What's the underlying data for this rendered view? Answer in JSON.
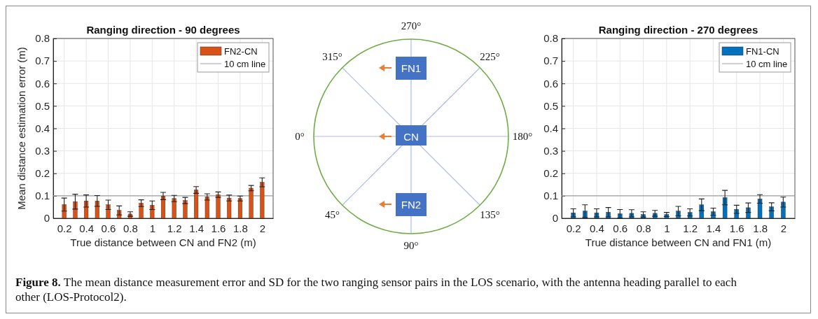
{
  "chart_data": [
    {
      "type": "bar",
      "title": "Ranging direction - 90 degrees",
      "xlabel": "True distance between CN and FN2 (m)",
      "ylabel": "Mean distance estimation error (m)",
      "x": [
        0.2,
        0.3,
        0.4,
        0.5,
        0.6,
        0.7,
        0.8,
        0.9,
        1.0,
        1.1,
        1.2,
        1.3,
        1.4,
        1.5,
        1.6,
        1.7,
        1.8,
        1.9,
        2.0
      ],
      "series": [
        {
          "name": "FN2-CN",
          "color": "#d95319",
          "values": [
            0.061,
            0.074,
            0.077,
            0.077,
            0.06,
            0.035,
            0.019,
            0.067,
            0.058,
            0.099,
            0.088,
            0.079,
            0.126,
            0.095,
            0.105,
            0.09,
            0.088,
            0.134,
            0.16
          ],
          "errors": [
            0.029,
            0.033,
            0.027,
            0.024,
            0.021,
            0.02,
            0.01,
            0.015,
            0.019,
            0.016,
            0.014,
            0.014,
            0.015,
            0.014,
            0.012,
            0.013,
            0.011,
            0.012,
            0.02
          ]
        }
      ],
      "xlim": [
        0.1,
        2.1
      ],
      "xticks": [
        0.2,
        0.4,
        0.6,
        0.8,
        1,
        1.2,
        1.4,
        1.6,
        1.8,
        2
      ],
      "ylim": [
        0,
        0.8
      ],
      "yticks": [
        0,
        0.1,
        0.2,
        0.3,
        0.4,
        0.5,
        0.6,
        0.7,
        0.8
      ],
      "ref_lines": [
        {
          "axis": "y",
          "value": 0.1,
          "label": "10 cm line",
          "color": "#a0a0a0"
        }
      ],
      "grid": true,
      "legend": "top right",
      "annotations": [
        "Figure 8.",
        "The mean distance measurement error and SD for the two ranging sensor pairs in the LOS scenario, with the antenna heading parallel to each other (LOS-Protocol2)."
      ]
    },
    {
      "type": "other",
      "annotations": [
        "270°",
        "225°",
        "180°",
        "135°",
        "90°",
        "45°",
        "0°",
        "315°",
        "FN1",
        "CN",
        "FN2"
      ]
    },
    {
      "type": "bar",
      "title": "Ranging direction - 270 degrees",
      "xlabel": "True distance between CN and FN1 (m)",
      "x": [
        0.2,
        0.3,
        0.4,
        0.5,
        0.6,
        0.7,
        0.8,
        0.9,
        1.0,
        1.1,
        1.2,
        1.3,
        1.4,
        1.5,
        1.6,
        1.7,
        1.8,
        1.9,
        2.0
      ],
      "series": [
        {
          "name": "FN1-CN",
          "color": "#0072bd",
          "values": [
            0.024,
            0.032,
            0.024,
            0.027,
            0.02,
            0.022,
            0.017,
            0.022,
            0.017,
            0.032,
            0.026,
            0.06,
            0.029,
            0.092,
            0.04,
            0.047,
            0.086,
            0.051,
            0.072
          ],
          "errors": [
            0.018,
            0.028,
            0.018,
            0.021,
            0.019,
            0.016,
            0.012,
            0.013,
            0.009,
            0.021,
            0.016,
            0.026,
            0.016,
            0.032,
            0.018,
            0.021,
            0.019,
            0.018,
            0.022
          ]
        }
      ],
      "xlim": [
        0.1,
        2.1
      ],
      "xticks": [
        0.2,
        0.4,
        0.6,
        0.8,
        1,
        1.2,
        1.4,
        1.6,
        1.8,
        2
      ],
      "ylim": [
        0,
        0.8
      ],
      "yticks": [
        0,
        0.1,
        0.2,
        0.3,
        0.4,
        0.5,
        0.6,
        0.7,
        0.8
      ],
      "ref_lines": [
        {
          "axis": "y",
          "value": 0.1,
          "label": "10 cm line",
          "color": "#a0a0a0"
        }
      ],
      "grid": true,
      "legend": "top right"
    }
  ]
}
